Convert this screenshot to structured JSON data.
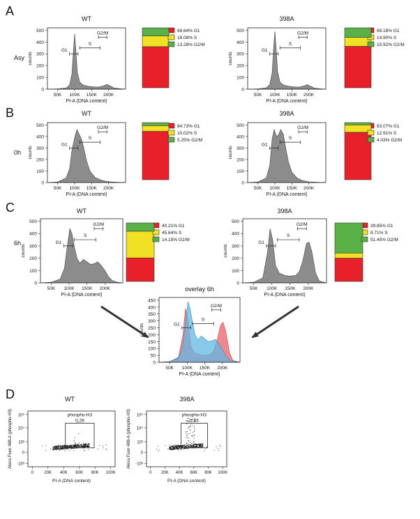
{
  "figure": {
    "panel_labels": [
      "A",
      "B",
      "C",
      "D"
    ],
    "row_labels": {
      "A": "Asy",
      "B": "0h",
      "C": "6h"
    },
    "histogram_xlabel": "PI-A (DNA content)",
    "histogram_ylabel": "counts",
    "gate_labels": {
      "g1": "G1",
      "s": "S",
      "g2m": "G2/M"
    },
    "hist_x_ticks": [
      "50K",
      "100K",
      "150K",
      "200K"
    ],
    "overlay_title": "overlay 6h",
    "colors": {
      "g1": "#e8202a",
      "s": "#f0e124",
      "g2m": "#5ab147",
      "hist_fill": "#8c8c8c",
      "overlay_blue": "#5fb8e3",
      "overlay_red": "#ec6b72"
    }
  },
  "chart_data": [
    {
      "id": "A-WT",
      "type": "area",
      "title": "WT",
      "row": "Asy",
      "xlabel": "PI-A (DNA content)",
      "ylabel": "counts",
      "yticks": [
        "0",
        "100",
        "200",
        "300",
        "400",
        "500"
      ],
      "ylim": [
        0,
        520
      ],
      "x": [
        20,
        50,
        75,
        85,
        92,
        97,
        100,
        103,
        108,
        115,
        125,
        140,
        155,
        170,
        185,
        195,
        205,
        215,
        230,
        250
      ],
      "y": [
        0,
        3,
        10,
        35,
        130,
        350,
        470,
        360,
        140,
        60,
        35,
        25,
        20,
        18,
        28,
        40,
        28,
        12,
        5,
        0
      ],
      "legend": [
        {
          "label": "68.64%  G1",
          "value": 68.64,
          "phase": "g1"
        },
        {
          "label": "18.08%  S",
          "value": 18.08,
          "phase": "s"
        },
        {
          "label": "13.28%  G2/M",
          "value": 13.28,
          "phase": "g2m"
        }
      ]
    },
    {
      "id": "A-398A",
      "type": "area",
      "title": "398A",
      "row": "Asy",
      "xlabel": "PI-A (DNA content)",
      "ylabel": "counts",
      "yticks": [
        "0",
        "100",
        "200",
        "300",
        "400",
        "500"
      ],
      "ylim": [
        0,
        520
      ],
      "x": [
        20,
        50,
        75,
        85,
        92,
        97,
        100,
        103,
        108,
        115,
        125,
        140,
        155,
        170,
        185,
        195,
        205,
        215,
        230,
        250
      ],
      "y": [
        0,
        3,
        12,
        40,
        140,
        380,
        490,
        380,
        150,
        60,
        35,
        25,
        20,
        18,
        26,
        38,
        26,
        10,
        4,
        0
      ],
      "legend": [
        {
          "label": "69.18%  G1",
          "value": 69.18,
          "phase": "g1"
        },
        {
          "label": "14.90%  S",
          "value": 14.9,
          "phase": "s"
        },
        {
          "label": "15.92%  G2/M",
          "value": 15.92,
          "phase": "g2m"
        }
      ]
    },
    {
      "id": "B-WT",
      "type": "area",
      "title": "WT",
      "row": "0h",
      "xlabel": "PI-A (DNA content)",
      "ylabel": "counts",
      "yticks": [
        "0",
        "100",
        "200",
        "300",
        "400",
        "500"
      ],
      "ylim": [
        0,
        520
      ],
      "x": [
        20,
        50,
        75,
        85,
        92,
        100,
        107,
        113,
        120,
        127,
        135,
        145,
        160,
        175,
        190,
        210,
        230,
        250
      ],
      "y": [
        0,
        5,
        40,
        120,
        280,
        390,
        460,
        420,
        380,
        300,
        190,
        100,
        45,
        25,
        12,
        5,
        2,
        0
      ],
      "legend": [
        {
          "label": "84.73%  G1",
          "value": 84.73,
          "phase": "g1"
        },
        {
          "label": "10.02%  S",
          "value": 10.02,
          "phase": "s"
        },
        {
          "label": "5.25%  G2/M",
          "value": 5.25,
          "phase": "g2m"
        }
      ]
    },
    {
      "id": "B-398A",
      "type": "area",
      "title": "398A",
      "row": "0h",
      "xlabel": "PI-A (DNA content)",
      "ylabel": "counts",
      "yticks": [
        "0",
        "100",
        "200",
        "300",
        "400",
        "500"
      ],
      "ylim": [
        0,
        520
      ],
      "x": [
        20,
        50,
        75,
        85,
        92,
        98,
        105,
        110,
        117,
        125,
        132,
        140,
        150,
        165,
        180,
        200,
        230,
        250
      ],
      "y": [
        0,
        5,
        40,
        150,
        380,
        460,
        400,
        410,
        460,
        420,
        300,
        180,
        90,
        40,
        18,
        6,
        2,
        0
      ],
      "legend": [
        {
          "label": "83.07%  G1",
          "value": 83.07,
          "phase": "g1"
        },
        {
          "label": "12.91%  S",
          "value": 12.91,
          "phase": "s"
        },
        {
          "label": "4.03%  G2/M",
          "value": 4.03,
          "phase": "g2m"
        }
      ]
    },
    {
      "id": "C-WT",
      "type": "area",
      "title": "WT",
      "row": "6h",
      "xlabel": "PI-A (DNA content)",
      "ylabel": "counts",
      "yticks": [
        "0",
        "100",
        "200",
        "300",
        "400",
        "500"
      ],
      "ylim": [
        0,
        520
      ],
      "x": [
        20,
        50,
        75,
        87,
        95,
        102,
        108,
        115,
        122,
        130,
        140,
        150,
        160,
        170,
        180,
        190,
        200,
        210,
        220,
        235,
        250
      ],
      "y": [
        0,
        5,
        30,
        120,
        300,
        440,
        400,
        290,
        200,
        160,
        190,
        170,
        150,
        155,
        170,
        140,
        100,
        50,
        20,
        5,
        0
      ],
      "legend": [
        {
          "label": "40.21%  G1",
          "value": 40.21,
          "phase": "g1"
        },
        {
          "label": "45.64%  S",
          "value": 45.64,
          "phase": "s"
        },
        {
          "label": "14.15%  G2/M",
          "value": 14.15,
          "phase": "g2m"
        }
      ]
    },
    {
      "id": "C-398A",
      "type": "area",
      "title": "398A",
      "row": "6h",
      "xlabel": "PI-A (DNA content)",
      "ylabel": "counts",
      "yticks": [
        "0",
        "100",
        "200",
        "300",
        "400",
        "500"
      ],
      "ylim": [
        0,
        520
      ],
      "x": [
        20,
        50,
        75,
        88,
        95,
        102,
        110,
        120,
        135,
        150,
        165,
        175,
        185,
        195,
        202,
        210,
        220,
        230,
        250
      ],
      "y": [
        0,
        5,
        40,
        250,
        440,
        350,
        140,
        80,
        60,
        55,
        60,
        90,
        180,
        320,
        330,
        250,
        80,
        15,
        0
      ],
      "legend": [
        {
          "label": "39.85%  G1",
          "value": 39.85,
          "phase": "g1"
        },
        {
          "label": "8.71%  S",
          "value": 8.71,
          "phase": "s"
        },
        {
          "label": "51.45%  G2/M",
          "value": 51.45,
          "phase": "g2m"
        }
      ]
    },
    {
      "id": "C-overlay",
      "type": "area",
      "title": "overlay 6h",
      "xlabel": "PI-A (DNA content)",
      "ylabel": "counts",
      "yticks": [
        "0",
        "50",
        "100",
        "150",
        "200",
        "250",
        "300",
        "350",
        "400",
        "450"
      ],
      "ylim": [
        0,
        470
      ],
      "x_red": [
        20,
        50,
        75,
        88,
        95,
        102,
        110,
        120,
        135,
        150,
        165,
        175,
        185,
        195,
        202,
        210,
        220,
        230,
        250
      ],
      "y_red": [
        0,
        5,
        35,
        200,
        390,
        310,
        120,
        70,
        55,
        50,
        55,
        80,
        160,
        270,
        290,
        220,
        70,
        12,
        0
      ],
      "x_blue": [
        20,
        50,
        75,
        87,
        95,
        102,
        108,
        115,
        122,
        130,
        140,
        150,
        160,
        170,
        180,
        190,
        200,
        210,
        220,
        235,
        250
      ],
      "y_blue": [
        0,
        5,
        30,
        110,
        280,
        440,
        390,
        290,
        200,
        160,
        190,
        170,
        150,
        155,
        165,
        135,
        95,
        45,
        18,
        5,
        0
      ]
    }
  ],
  "scatter_panels": [
    {
      "id": "D-WT",
      "type": "scatter",
      "title": "WT",
      "gate_label": "phospho-H3",
      "gate_value": "0,28",
      "xlabel": "PI-A (DNA content)",
      "ylabel": "Alexa Fluor 488-A (phospho-H3)",
      "x_ticks": [
        "0",
        "20K",
        "40K",
        "60K",
        "80K",
        "100K"
      ]
    },
    {
      "id": "D-398A",
      "type": "scatter",
      "title": "398A",
      "gate_label": "phospho-H3",
      "gate_value": "1,83",
      "xlabel": "PI-A (DNA content)",
      "ylabel": "Alexa Fluor 488-A (phospho-H3)",
      "x_ticks": [
        "0",
        "20K",
        "40K",
        "60K",
        "80K",
        "100K"
      ]
    }
  ]
}
